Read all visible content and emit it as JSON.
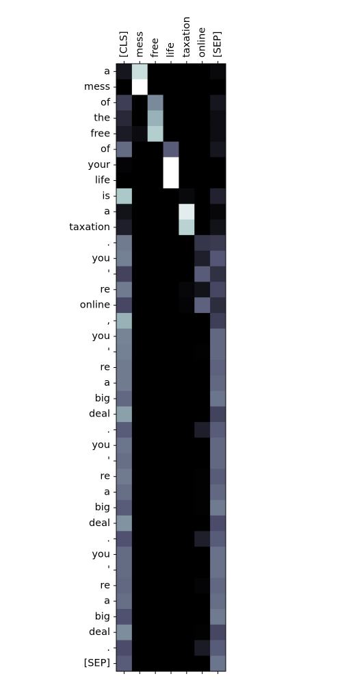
{
  "chart_data": {
    "type": "heatmap",
    "title": "",
    "xlabel": "",
    "ylabel": "",
    "colormap": "bone",
    "value_range": [
      0,
      1
    ],
    "grid": false,
    "legend": "none",
    "x_labels": [
      "[CLS]",
      "mess",
      "free",
      "life",
      "taxation",
      "online",
      "[SEP]"
    ],
    "y_labels": [
      "a",
      "mess",
      "of",
      "the",
      "free",
      "of",
      "your",
      "life",
      "is",
      "a",
      "taxation",
      ".",
      "you",
      "'",
      "re",
      "online",
      ",",
      "you",
      "'",
      "re",
      "a",
      "big",
      "deal",
      ".",
      "you",
      "'",
      "re",
      "a",
      "big",
      "deal",
      ".",
      "you",
      "'",
      "re",
      "a",
      "big",
      "deal",
      ".",
      "[SEP]"
    ],
    "values": [
      [
        0.1,
        0.85,
        0.0,
        0.0,
        0.0,
        0.0,
        0.04
      ],
      [
        0.0,
        1.0,
        0.0,
        0.0,
        0.0,
        0.0,
        0.0
      ],
      [
        0.28,
        0.0,
        0.55,
        0.0,
        0.0,
        0.0,
        0.1
      ],
      [
        0.18,
        0.0,
        0.68,
        0.0,
        0.0,
        0.0,
        0.06
      ],
      [
        0.12,
        0.05,
        0.78,
        0.0,
        0.0,
        0.0,
        0.06
      ],
      [
        0.45,
        0.0,
        0.0,
        0.4,
        0.0,
        0.0,
        0.1
      ],
      [
        0.02,
        0.0,
        0.0,
        1.0,
        0.0,
        0.0,
        0.0
      ],
      [
        0.0,
        0.0,
        0.0,
        1.0,
        0.0,
        0.0,
        0.0
      ],
      [
        0.76,
        0.0,
        0.0,
        0.0,
        0.04,
        0.0,
        0.15
      ],
      [
        0.08,
        0.0,
        0.0,
        0.0,
        0.92,
        0.0,
        0.03
      ],
      [
        0.14,
        0.0,
        0.0,
        0.0,
        0.8,
        0.0,
        0.08
      ],
      [
        0.5,
        0.0,
        0.0,
        0.0,
        0.0,
        0.24,
        0.26
      ],
      [
        0.52,
        0.0,
        0.0,
        0.0,
        0.0,
        0.14,
        0.38
      ],
      [
        0.3,
        0.0,
        0.0,
        0.0,
        0.0,
        0.4,
        0.22
      ],
      [
        0.5,
        0.0,
        0.0,
        0.0,
        0.03,
        0.08,
        0.32
      ],
      [
        0.32,
        0.0,
        0.0,
        0.0,
        0.02,
        0.42,
        0.2
      ],
      [
        0.68,
        0.0,
        0.0,
        0.0,
        0.0,
        0.0,
        0.28
      ],
      [
        0.53,
        0.0,
        0.0,
        0.0,
        0.0,
        0.0,
        0.44
      ],
      [
        0.52,
        0.0,
        0.0,
        0.0,
        0.0,
        0.01,
        0.44
      ],
      [
        0.5,
        0.0,
        0.0,
        0.0,
        0.0,
        0.0,
        0.42
      ],
      [
        0.5,
        0.0,
        0.0,
        0.0,
        0.0,
        0.0,
        0.44
      ],
      [
        0.44,
        0.0,
        0.0,
        0.0,
        0.0,
        0.0,
        0.48
      ],
      [
        0.62,
        0.0,
        0.0,
        0.0,
        0.0,
        0.0,
        0.3
      ],
      [
        0.4,
        0.0,
        0.0,
        0.0,
        0.0,
        0.14,
        0.4
      ],
      [
        0.48,
        0.0,
        0.0,
        0.0,
        0.0,
        0.0,
        0.44
      ],
      [
        0.46,
        0.0,
        0.0,
        0.0,
        0.0,
        0.0,
        0.44
      ],
      [
        0.5,
        0.0,
        0.0,
        0.0,
        0.0,
        0.01,
        0.4
      ],
      [
        0.46,
        0.0,
        0.0,
        0.0,
        0.0,
        0.01,
        0.44
      ],
      [
        0.4,
        0.0,
        0.0,
        0.0,
        0.0,
        0.01,
        0.5
      ],
      [
        0.58,
        0.0,
        0.0,
        0.0,
        0.0,
        0.0,
        0.34
      ],
      [
        0.36,
        0.0,
        0.0,
        0.0,
        0.0,
        0.14,
        0.4
      ],
      [
        0.45,
        0.0,
        0.0,
        0.0,
        0.0,
        0.0,
        0.47
      ],
      [
        0.45,
        0.0,
        0.0,
        0.0,
        0.0,
        0.0,
        0.47
      ],
      [
        0.44,
        0.0,
        0.0,
        0.0,
        0.0,
        0.02,
        0.44
      ],
      [
        0.46,
        0.0,
        0.0,
        0.0,
        0.0,
        0.0,
        0.46
      ],
      [
        0.36,
        0.0,
        0.0,
        0.0,
        0.0,
        0.0,
        0.5
      ],
      [
        0.56,
        0.0,
        0.0,
        0.0,
        0.0,
        0.01,
        0.32
      ],
      [
        0.34,
        0.0,
        0.0,
        0.0,
        0.0,
        0.12,
        0.4
      ],
      [
        0.4,
        0.0,
        0.0,
        0.0,
        0.0,
        0.0,
        0.48
      ]
    ]
  }
}
